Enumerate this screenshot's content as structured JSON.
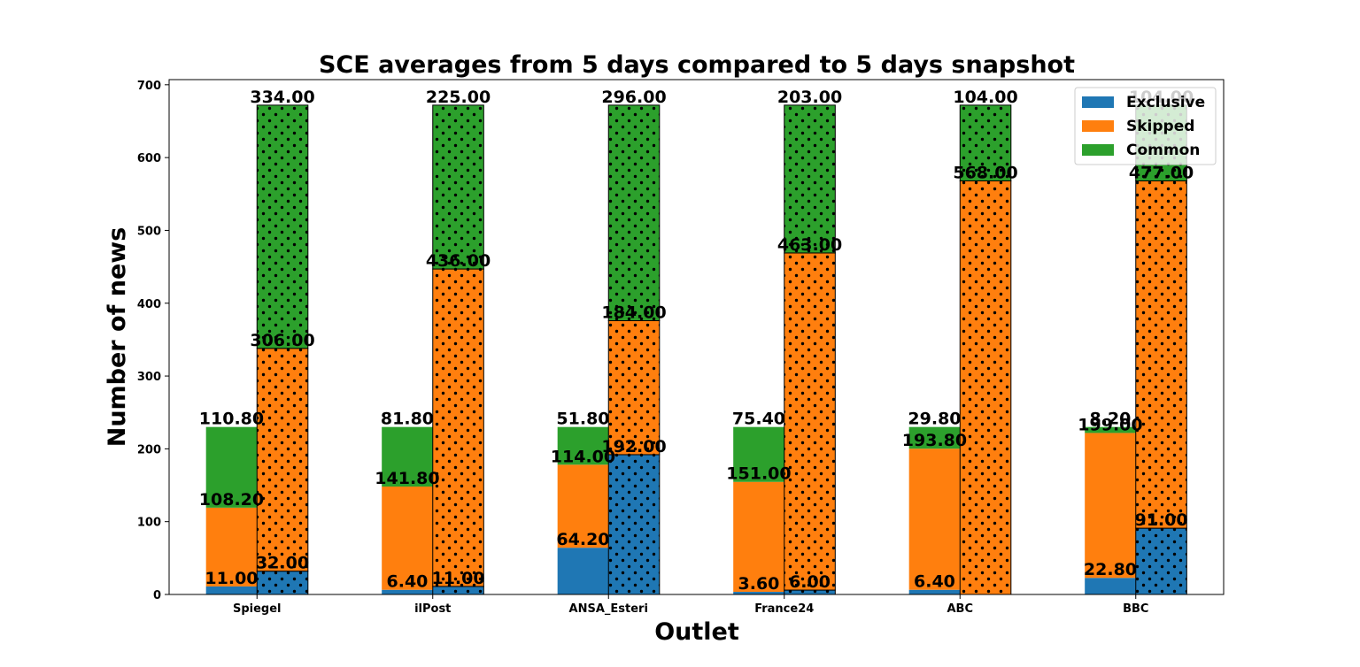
{
  "chart_data": {
    "type": "bar",
    "title": "SCE averages from 5 days compared to 5 days snapshot",
    "xlabel": "Outlet",
    "ylabel": "Number of news",
    "ylim": [
      0,
      700
    ],
    "yticks": [
      0,
      100,
      200,
      300,
      400,
      500,
      600,
      700
    ],
    "grid": false,
    "legend_position": "top-right",
    "stacked": true,
    "categories": [
      "Spiegel",
      "ilPost",
      "ANSA_Esteri",
      "France24",
      "ABC",
      "BBC"
    ],
    "legend": [
      {
        "name": "Exclusive",
        "color": "#1f77b4"
      },
      {
        "name": "Skipped",
        "color": "#ff7f0e"
      },
      {
        "name": "Common",
        "color": "#2ca02c"
      }
    ],
    "groups": [
      {
        "hatch": "none",
        "series": [
          {
            "name": "Exclusive",
            "color": "#1f77b4",
            "values": [
              11.0,
              6.4,
              64.2,
              3.6,
              6.4,
              22.8
            ],
            "labels": [
              "11.00",
              "6.40",
              "64.20",
              "3.60",
              "6.40",
              "22.80"
            ]
          },
          {
            "name": "Skipped",
            "color": "#ff7f0e",
            "values": [
              108.2,
              141.8,
              114.0,
              151.0,
              193.8,
              199.0
            ],
            "labels": [
              "108.20",
              "141.80",
              "114.00",
              "151.00",
              "193.80",
              "199.00"
            ]
          },
          {
            "name": "Common",
            "color": "#2ca02c",
            "values": [
              110.8,
              81.8,
              51.8,
              75.4,
              29.8,
              8.2
            ],
            "labels": [
              "110.80",
              "81.80",
              "51.80",
              "75.40",
              "29.80",
              "8.20"
            ]
          }
        ]
      },
      {
        "hatch": "dots",
        "series": [
          {
            "name": "Exclusive",
            "color": "#1f77b4",
            "values": [
              32.0,
              11.0,
              192.0,
              6.0,
              0,
              91.0
            ],
            "labels": [
              "32.00",
              "11.00",
              "192.00",
              "6.00",
              "",
              "91.00"
            ]
          },
          {
            "name": "Skipped",
            "color": "#ff7f0e",
            "values": [
              306.0,
              436.0,
              184.0,
              463.0,
              568.0,
              477.0
            ],
            "labels": [
              "306.00",
              "436.00",
              "184.00",
              "463.00",
              "568.00",
              "477.00"
            ]
          },
          {
            "name": "Common",
            "color": "#2ca02c",
            "values": [
              334.0,
              225.0,
              296.0,
              203.0,
              104.0,
              104.0
            ],
            "labels": [
              "334.00",
              "225.00",
              "296.00",
              "203.00",
              "104.00",
              "104.00"
            ]
          }
        ]
      }
    ]
  }
}
